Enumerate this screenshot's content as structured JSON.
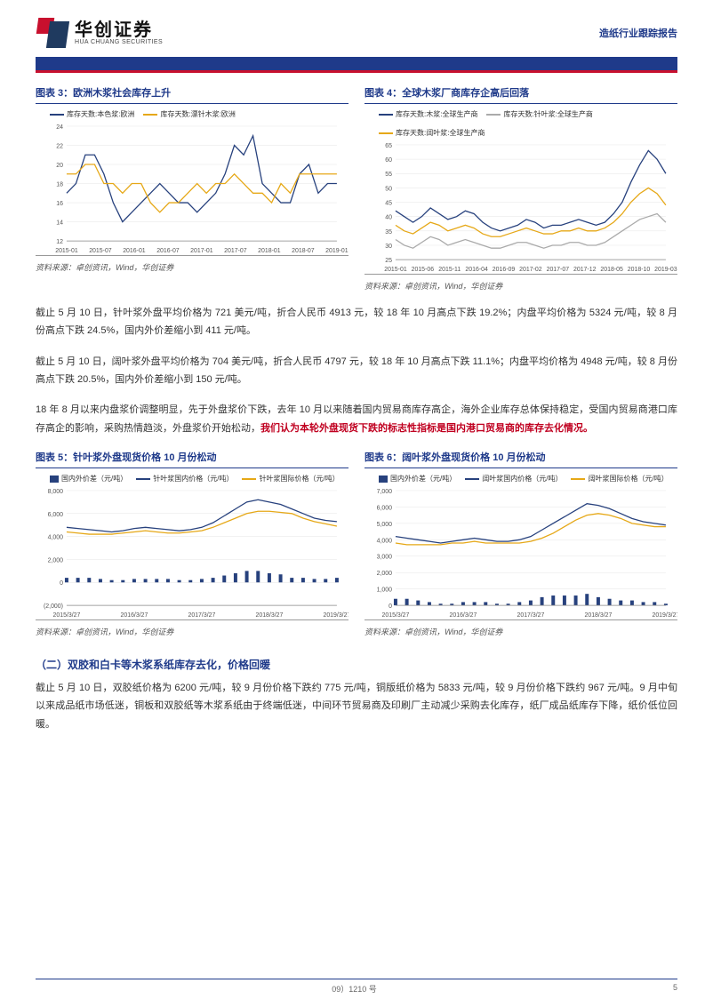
{
  "header": {
    "logo_cn": "华创证券",
    "logo_en": "HUA CHUANG SECURITIES",
    "doc_type": "造纸行业跟踪报告"
  },
  "chart3": {
    "title": "图表 3：欧洲木浆社会库存上升",
    "legend": [
      {
        "label": "库存天数:本色浆:欧洲",
        "color": "#27417d"
      },
      {
        "label": "库存天数:漂针木浆:欧洲",
        "color": "#e6a817"
      }
    ],
    "y_min": 12,
    "y_max": 24,
    "y_step": 2,
    "x_labels": [
      "2015-01",
      "2015-07",
      "2016-01",
      "2016-07",
      "2017-01",
      "2017-07",
      "2018-01",
      "2018-07",
      "2019-01"
    ],
    "series": [
      {
        "color": "#27417d",
        "values": [
          17,
          18,
          21,
          21,
          19,
          16,
          14,
          15,
          16,
          17,
          18,
          17,
          16,
          16,
          15,
          16,
          17,
          19,
          22,
          21,
          23,
          18,
          17,
          16,
          16,
          19,
          20,
          17,
          18,
          18
        ]
      },
      {
        "color": "#e6a817",
        "values": [
          19,
          19,
          20,
          20,
          18,
          18,
          17,
          18,
          18,
          16,
          15,
          16,
          16,
          17,
          18,
          17,
          18,
          18,
          19,
          18,
          17,
          17,
          16,
          18,
          17,
          19,
          19,
          19,
          19,
          19
        ]
      }
    ],
    "source": "资料来源：卓创资讯，Wind，华创证券",
    "grid_color": "#e5e5e5",
    "axis_color": "#888"
  },
  "chart4": {
    "title": "图表 4：全球木浆厂商库存企高后回落",
    "legend": [
      {
        "label": "库存天数:木浆:全球生产商",
        "color": "#27417d"
      },
      {
        "label": "库存天数:针叶浆:全球生产商",
        "color": "#aaaaaa"
      },
      {
        "label": "库存天数:阔叶浆:全球生产商",
        "color": "#e6a817"
      }
    ],
    "y_min": 25,
    "y_max": 65,
    "y_step": 5,
    "x_labels": [
      "2015-01",
      "2015-06",
      "2015-11",
      "2016-04",
      "2016-09",
      "2017-02",
      "2017-07",
      "2017-12",
      "2018-05",
      "2018-10",
      "2019-03"
    ],
    "series": [
      {
        "color": "#27417d",
        "values": [
          42,
          40,
          38,
          40,
          43,
          41,
          39,
          40,
          42,
          41,
          38,
          36,
          35,
          36,
          37,
          39,
          38,
          36,
          37,
          37,
          38,
          39,
          38,
          37,
          38,
          41,
          45,
          52,
          58,
          63,
          60,
          55
        ]
      },
      {
        "color": "#e6a817",
        "values": [
          37,
          35,
          34,
          36,
          38,
          37,
          35,
          36,
          37,
          36,
          34,
          33,
          33,
          34,
          35,
          36,
          35,
          34,
          34,
          35,
          35,
          36,
          35,
          35,
          36,
          38,
          41,
          45,
          48,
          50,
          48,
          44
        ]
      },
      {
        "color": "#aaaaaa",
        "values": [
          32,
          30,
          29,
          31,
          33,
          32,
          30,
          31,
          32,
          31,
          30,
          29,
          29,
          30,
          31,
          31,
          30,
          29,
          30,
          30,
          31,
          31,
          30,
          30,
          31,
          33,
          35,
          37,
          39,
          40,
          41,
          38
        ]
      }
    ],
    "source": "资料来源：卓创资讯，Wind，华创证券",
    "grid_color": "#e5e5e5",
    "axis_color": "#888"
  },
  "para1": "截止 5 月 10 日，针叶浆外盘平均价格为 721 美元/吨，折合人民币 4913 元，较 18 年 10 月高点下跌 19.2%；内盘平均价格为 5324 元/吨，较 8 月份高点下跌 24.5%，国内外价差缩小到 411 元/吨。",
  "para2": "截止 5 月 10 日，阔叶浆外盘平均价格为 704 美元/吨，折合人民币 4797 元，较 18 年 10 月高点下跌 11.1%；内盘平均价格为 4948 元/吨，较 8 月份高点下跌 20.5%，国内外价差缩小到 150 元/吨。",
  "para3_a": "18 年 8 月以来内盘浆价调整明显，先于外盘浆价下跌，去年 10 月以来随着国内贸易商库存高企，海外企业库存总体保持稳定，受国内贸易商港口库存高企的影响，采购热情趋淡，外盘浆价开始松动，",
  "para3_b": "我们认为本轮外盘现货下跌的标志性指标是国内港口贸易商的库存去化情况。",
  "chart5": {
    "title": "图表 5：针叶浆外盘现货价格 10 月份松动",
    "legend": [
      {
        "label": "国内外价差（元/吨）",
        "color": "#27417d",
        "type": "bar"
      },
      {
        "label": "针叶浆国内价格（元/吨）",
        "color": "#27417d",
        "type": "line"
      },
      {
        "label": "针叶浆国际价格（元/吨）",
        "color": "#e6a817",
        "type": "line"
      }
    ],
    "y_min": -2000,
    "y_max": 8000,
    "y_step": 2000,
    "neg_label": "(2,000)",
    "x_labels": [
      "2015/3/27",
      "2016/3/27",
      "2017/3/27",
      "2018/3/27",
      "2019/3/27"
    ],
    "line_a": {
      "color": "#27417d",
      "values": [
        4800,
        4700,
        4600,
        4500,
        4400,
        4500,
        4700,
        4800,
        4700,
        4600,
        4500,
        4600,
        4800,
        5200,
        5800,
        6400,
        7000,
        7200,
        7000,
        6800,
        6400,
        6000,
        5600,
        5400,
        5300
      ]
    },
    "line_b": {
      "color": "#e6a817",
      "values": [
        4400,
        4300,
        4200,
        4200,
        4200,
        4300,
        4400,
        4500,
        4400,
        4300,
        4300,
        4400,
        4500,
        4800,
        5200,
        5600,
        6000,
        6200,
        6200,
        6100,
        6000,
        5600,
        5300,
        5100,
        4900
      ]
    },
    "bars": {
      "color": "#27417d",
      "values": [
        400,
        400,
        400,
        300,
        200,
        200,
        300,
        300,
        300,
        300,
        200,
        200,
        300,
        400,
        600,
        800,
        1000,
        1000,
        800,
        700,
        400,
        400,
        300,
        300,
        400
      ]
    },
    "source": "资料来源：卓创资讯，Wind，华创证券"
  },
  "chart6": {
    "title": "图表 6：阔叶浆外盘现货价格 10 月份松动",
    "legend": [
      {
        "label": "国内外价差（元/吨）",
        "color": "#27417d",
        "type": "bar"
      },
      {
        "label": "阔叶浆国内价格（元/吨）",
        "color": "#27417d",
        "type": "line"
      },
      {
        "label": "阔叶浆国际价格（元/吨）",
        "color": "#e6a817",
        "type": "line"
      }
    ],
    "y_min": 0,
    "y_max": 7000,
    "y_step": 1000,
    "x_labels": [
      "2015/3/27",
      "2016/3/27",
      "2017/3/27",
      "2018/3/27",
      "2019/3/27"
    ],
    "line_a": {
      "color": "#27417d",
      "values": [
        4200,
        4100,
        4000,
        3900,
        3800,
        3900,
        4000,
        4100,
        4000,
        3900,
        3900,
        4000,
        4200,
        4600,
        5000,
        5400,
        5800,
        6200,
        6100,
        5900,
        5600,
        5300,
        5100,
        5000,
        4900
      ]
    },
    "line_b": {
      "color": "#e6a817",
      "values": [
        3800,
        3700,
        3700,
        3700,
        3700,
        3800,
        3800,
        3900,
        3800,
        3800,
        3800,
        3800,
        3900,
        4100,
        4400,
        4800,
        5200,
        5500,
        5600,
        5500,
        5300,
        5000,
        4900,
        4800,
        4800
      ]
    },
    "bars": {
      "color": "#27417d",
      "values": [
        400,
        400,
        300,
        200,
        100,
        100,
        200,
        200,
        200,
        100,
        100,
        200,
        300,
        500,
        600,
        600,
        600,
        700,
        500,
        400,
        300,
        300,
        200,
        200,
        100
      ]
    },
    "source": "资料来源：卓创资讯，Wind，华创证券"
  },
  "section2": {
    "heading": "（二）双胶和白卡等木浆系纸库存去化，价格回暖",
    "para": "截止 5 月 10 日，双胶纸价格为 6200 元/吨，较 9 月份价格下跌约 775 元/吨，铜版纸价格为 5833 元/吨，较 9 月份价格下跌约 967 元/吨。9 月中旬以来成品纸市场低迷，铜板和双胶纸等木浆系纸由于终端低迷，中间环节贸易商及印刷厂主动减少采购去化库存，纸厂成品纸库存下降，纸价低位回暖。"
  },
  "footer": {
    "center": "09）1210 号",
    "page": "5"
  }
}
